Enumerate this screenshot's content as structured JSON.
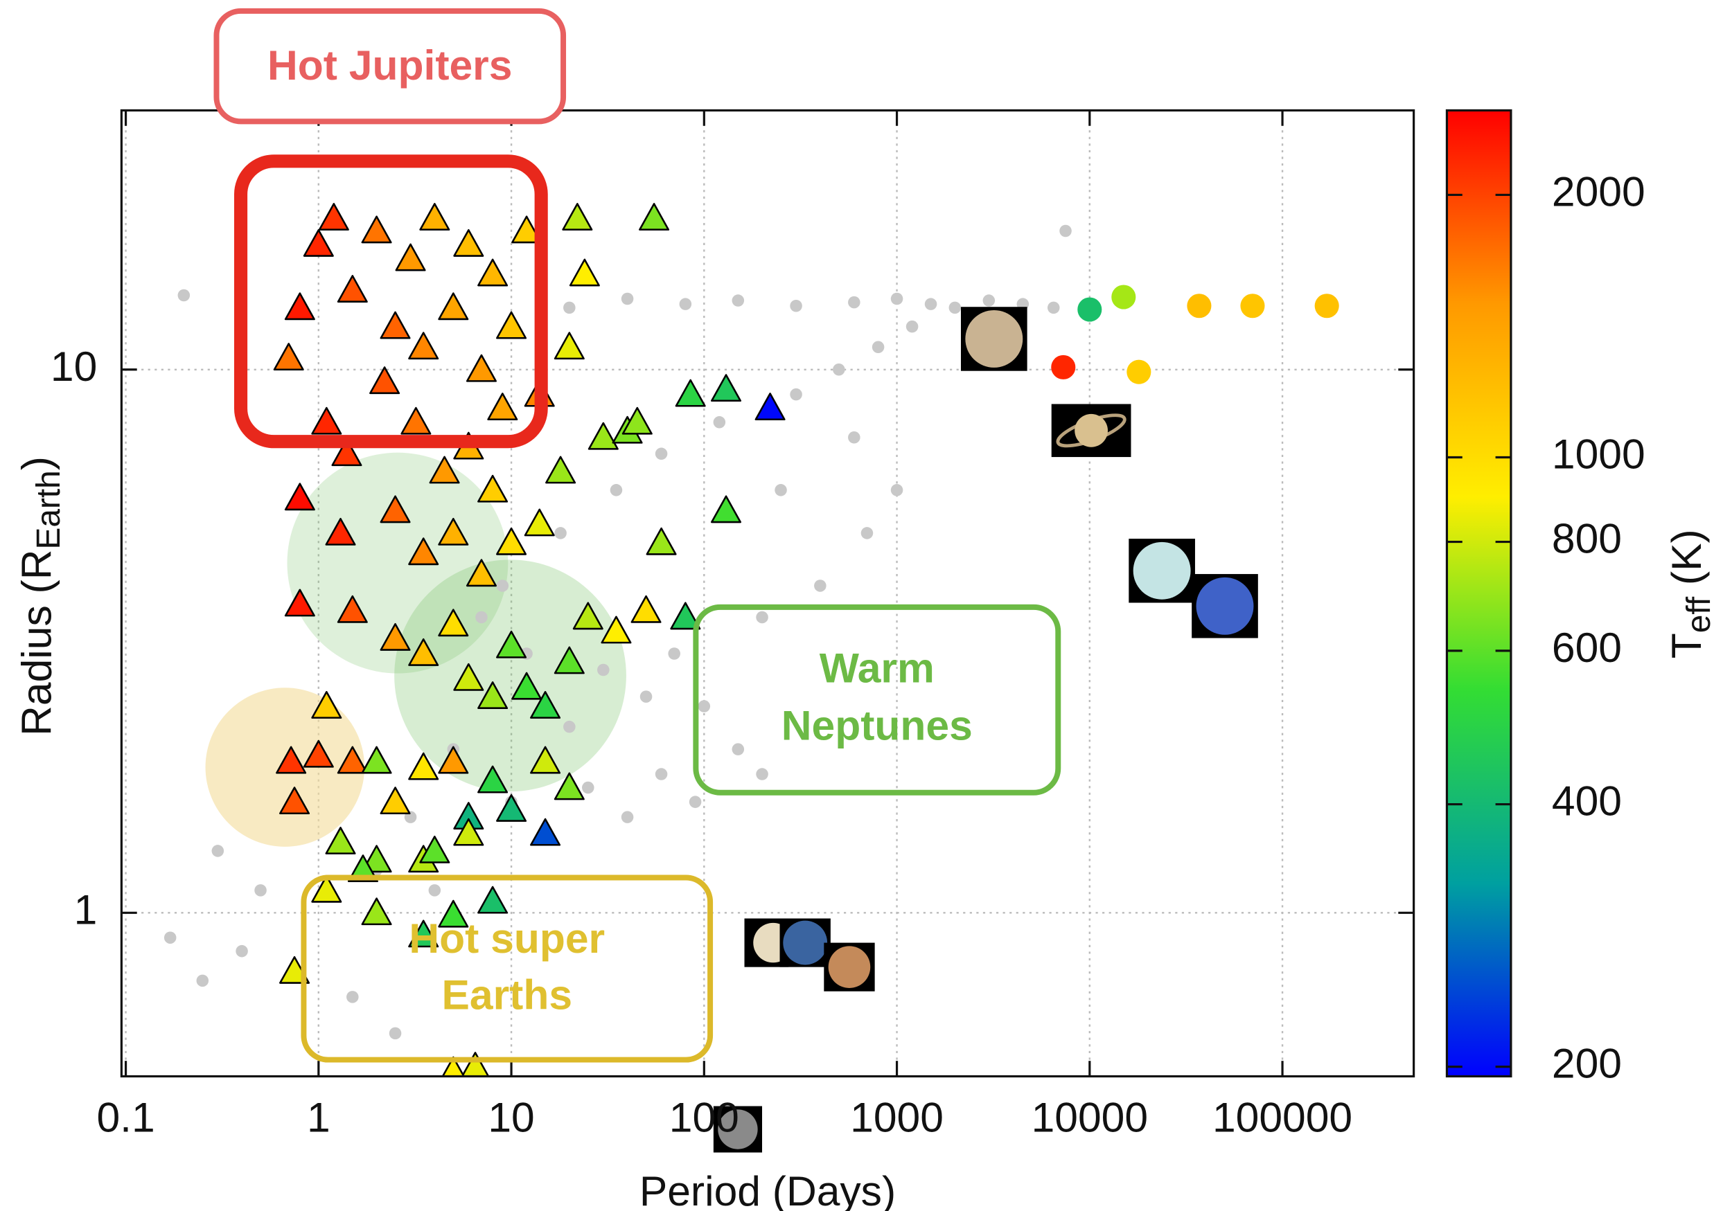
{
  "chart_data": {
    "type": "scatter",
    "xlabel": "Period (Days)",
    "ylabel": [
      "Radius (R",
      "Earth",
      ")"
    ],
    "xscale": "log",
    "yscale": "log",
    "xlim": [
      0.095,
      480000
    ],
    "ylim": [
      0.5,
      30
    ],
    "xticks": [
      0.1,
      1,
      10,
      100,
      1000,
      10000,
      100000
    ],
    "yticks": [
      1,
      10
    ],
    "grid": true,
    "colorbar": {
      "label": [
        "T",
        "eff",
        " (K)"
      ],
      "scale": "log",
      "lim": [
        195,
        2500
      ],
      "ticks": [
        200,
        400,
        600,
        800,
        1000,
        2000
      ],
      "colormap": [
        "#0000ff",
        "#00a0a0",
        "#33dd33",
        "#ffee00",
        "#ff9900",
        "#ff0000"
      ]
    },
    "annotations": [
      {
        "lines": [
          "Hot Jupiters"
        ],
        "color": "#e86060"
      },
      {
        "lines": [
          "Warm",
          "Neptunes"
        ],
        "color": "#6cba45"
      },
      {
        "lines": [
          "Hot super",
          "Earths"
        ],
        "color": "#e0c030"
      }
    ],
    "series": [
      {
        "marker": "circle",
        "color": "#c8c8c8",
        "x": [
          2,
          3,
          5,
          8,
          12,
          20,
          30,
          50,
          70,
          100,
          150,
          200,
          4,
          6,
          10,
          15,
          25,
          40,
          60,
          90,
          7,
          9,
          18,
          35,
          60,
          120,
          300,
          500,
          20,
          40,
          80,
          150,
          300,
          600,
          1000,
          1500,
          2000,
          3000,
          4500,
          6500,
          800,
          1200,
          400,
          700,
          200,
          0.17,
          0.25,
          0.3,
          0.4,
          0.5,
          0.2,
          7500,
          1.5,
          2.5,
          250,
          600,
          1000
        ],
        "y": [
          1.2,
          1.5,
          2,
          2.5,
          3,
          2.2,
          2.8,
          2.5,
          3,
          2.4,
          2,
          1.8,
          1.1,
          1.4,
          1.6,
          1.9,
          1.7,
          1.5,
          1.8,
          1.6,
          3.5,
          4,
          5,
          6,
          7,
          8,
          9,
          10,
          13,
          13.5,
          13.2,
          13.4,
          13.1,
          13.3,
          13.5,
          13.2,
          13,
          13.4,
          13.2,
          13,
          11,
          12,
          4,
          5,
          3.5,
          0.9,
          0.75,
          1.3,
          0.85,
          1.1,
          13.7,
          18,
          0.7,
          0.6,
          6,
          7.5,
          6
        ]
      },
      {
        "marker": "circle",
        "x": [
          7300,
          10000,
          15000,
          18000,
          37000,
          70000,
          170000
        ],
        "y": [
          10.1,
          12.9,
          13.6,
          9.9,
          13.1,
          13.1,
          13.1
        ],
        "teff": [
          2200,
          420,
          720,
          1100,
          1200,
          1150,
          1180
        ]
      },
      {
        "marker": "triangle",
        "x": [
          1,
          1.2,
          1.5,
          2,
          2.5,
          3,
          3.5,
          4,
          5,
          6,
          7,
          8,
          10,
          12,
          14,
          0.7,
          0.8,
          1.1,
          1.4,
          2.2,
          3.2,
          4.5,
          6,
          8,
          9,
          0.8,
          1.3,
          2.5,
          3.5,
          5,
          7,
          10,
          14,
          18,
          22,
          24,
          55,
          20,
          30,
          40,
          45,
          60,
          85,
          130,
          130,
          220,
          0.8,
          1.5,
          2.5,
          3.5,
          5,
          6,
          8,
          10,
          12,
          15,
          20,
          25,
          35,
          50,
          80,
          1.1,
          0.72,
          0.75,
          1,
          1.5,
          2,
          2.5,
          3.5,
          5,
          6,
          8,
          10,
          15,
          20,
          15,
          1.3,
          2,
          3.5,
          4,
          6,
          1.1,
          1.7,
          2,
          5,
          8,
          3.5,
          0.75,
          6.5,
          5
        ],
        "y": [
          17,
          19,
          14,
          18,
          12,
          16,
          11,
          19,
          13,
          17,
          10,
          15,
          12,
          18,
          9,
          10.5,
          13,
          8,
          7,
          9.5,
          8,
          6.5,
          7.2,
          6,
          8.5,
          5.8,
          5,
          5.5,
          4.6,
          5,
          4.2,
          4.8,
          5.2,
          6.5,
          19,
          15,
          19,
          11,
          7.5,
          7.7,
          8,
          4.8,
          9,
          9.2,
          5.5,
          8.5,
          3.7,
          3.6,
          3.2,
          3,
          3.4,
          2.7,
          2.5,
          3.1,
          2.6,
          2.4,
          2.9,
          3.5,
          3.3,
          3.6,
          3.5,
          2.4,
          1.9,
          1.6,
          1.95,
          1.9,
          1.9,
          1.6,
          1.85,
          1.9,
          1.5,
          1.75,
          1.55,
          1.9,
          1.7,
          1.4,
          1.35,
          1.25,
          1.25,
          1.3,
          1.4,
          1.1,
          1.2,
          1.0,
          0.99,
          1.05,
          0.91,
          0.78,
          0.52,
          0.51
        ],
        "teff": [
          2200,
          2100,
          1900,
          1700,
          1800,
          1500,
          1600,
          1300,
          1400,
          1200,
          1500,
          1250,
          1150,
          1100,
          1600,
          1700,
          2300,
          2200,
          2100,
          1900,
          1700,
          1500,
          1300,
          1100,
          1400,
          2400,
          2200,
          1800,
          1600,
          1300,
          1200,
          1000,
          850,
          700,
          750,
          900,
          650,
          850,
          700,
          650,
          680,
          700,
          500,
          450,
          560,
          200,
          2300,
          1900,
          1500,
          1200,
          1000,
          800,
          700,
          600,
          550,
          500,
          600,
          750,
          900,
          1000,
          450,
          1100,
          2100,
          1900,
          2000,
          1800,
          650,
          1100,
          950,
          1500,
          380,
          500,
          400,
          800,
          650,
          250,
          700,
          650,
          750,
          600,
          800,
          850,
          600,
          700,
          550,
          420,
          450,
          850,
          850,
          900
        ]
      }
    ]
  }
}
